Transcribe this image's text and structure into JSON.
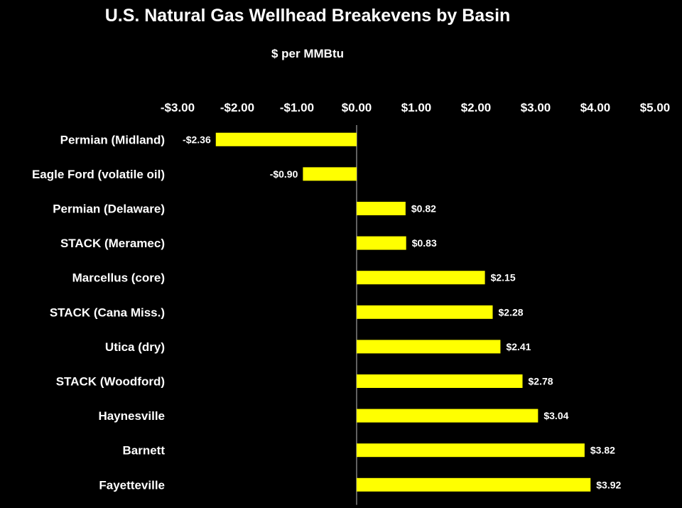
{
  "chart_data": {
    "type": "bar",
    "orientation": "horizontal",
    "title": "U.S. Natural Gas Wellhead Breakevens by Basin",
    "subtitle": "$ per MMBtu",
    "xlabel": "",
    "ylabel": "",
    "xlim": [
      -3,
      5
    ],
    "x_ticks": [
      -3,
      -2,
      -1,
      0,
      1,
      2,
      3,
      4,
      5
    ],
    "x_tick_labels": [
      "-$3.00",
      "-$2.00",
      "-$1.00",
      "$0.00",
      "$1.00",
      "$2.00",
      "$3.00",
      "$4.00",
      "$5.00"
    ],
    "x_axis_position": "top",
    "grid": false,
    "legend": "none",
    "categories": [
      "Permian (Midland)",
      "Eagle Ford (volatile oil)",
      "Permian (Delaware)",
      "STACK  (Meramec)",
      "Marcellus (core)",
      "STACK (Cana Miss.)",
      "Utica (dry)",
      "STACK (Woodford)",
      "Haynesville",
      "Barnett",
      "Fayetteville"
    ],
    "values": [
      -2.36,
      -0.9,
      0.82,
      0.83,
      2.15,
      2.28,
      2.41,
      2.78,
      3.04,
      3.82,
      3.92
    ],
    "data_labels": [
      "-$2.36",
      "-$0.90",
      "$0.82",
      "$0.83",
      "$2.15",
      "$2.28",
      "$2.41",
      "$2.78",
      "$3.04",
      "$3.82",
      "$3.92"
    ],
    "colors": {
      "bar": "#ffff00",
      "background": "#000000",
      "text": "#ffffff",
      "axis": "#bfbfbf"
    }
  }
}
